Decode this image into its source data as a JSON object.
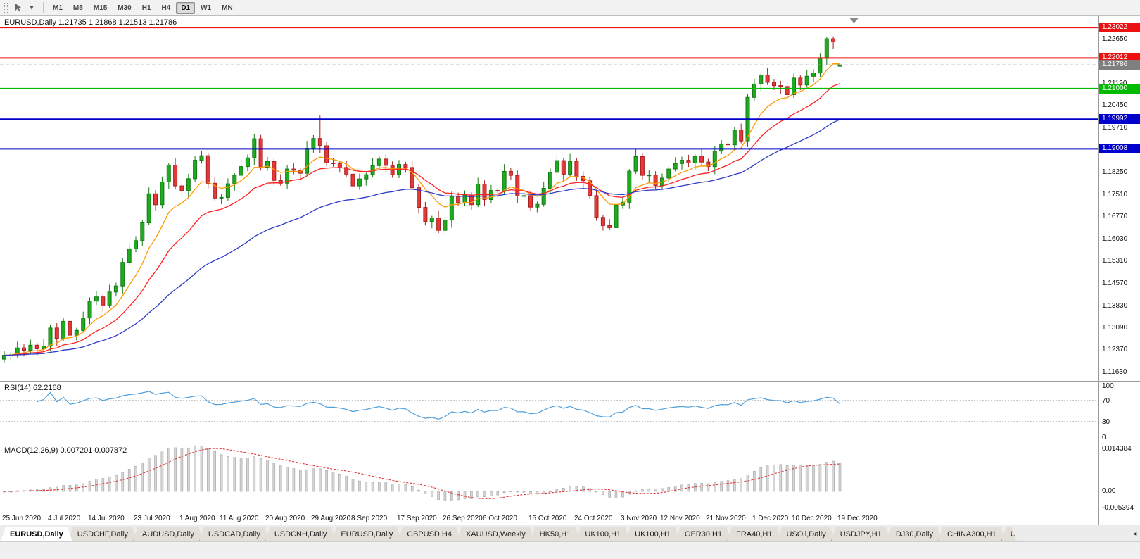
{
  "toolbar": {
    "timeframes": [
      "M1",
      "M5",
      "M15",
      "M30",
      "H1",
      "H4",
      "D1",
      "W1",
      "MN"
    ],
    "active_timeframe": "D1"
  },
  "chart_data": {
    "type": "candlestick",
    "symbol": "EURUSD",
    "period": "Daily",
    "title": "EURUSD,Daily 1.21735 1.21868 1.21513 1.21786",
    "ohlc_display": {
      "open": "1.21735",
      "high": "1.21868",
      "low": "1.21513",
      "close": "1.21786"
    },
    "price_scale": {
      "max": 1.2335,
      "min": 1.114
    },
    "price_axis_ticks": [
      "1.22650",
      "1.21190",
      "1.20450",
      "1.19710",
      "1.18250",
      "1.17510",
      "1.16770",
      "1.16030",
      "1.15310",
      "1.14570",
      "1.13830",
      "1.13090",
      "1.12370",
      "1.11630"
    ],
    "colors": {
      "up_fill": "#1fab1f",
      "up_border": "#157a15",
      "down_fill": "#e33939",
      "down_border": "#aa1f1f",
      "background": "#ffffff"
    },
    "h_lines": [
      {
        "price": 1.23022,
        "label": "1.23022",
        "color": "#ee1111"
      },
      {
        "price": 1.22012,
        "label": "1.22012",
        "color": "#ee1111"
      },
      {
        "price": 1.21,
        "label": "1.21000",
        "color": "#00bb00"
      },
      {
        "price": 1.19992,
        "label": "1.19992",
        "color": "#0000cc"
      },
      {
        "price": 1.19008,
        "label": "1.19008",
        "color": "#0000cc"
      }
    ],
    "current_price": {
      "value": 1.21786,
      "label": "1.21786",
      "color": "#7f7f7f"
    },
    "moving_averages": [
      {
        "name": "ma-fast-line",
        "period": 8,
        "color": "#ff9900"
      },
      {
        "name": "ma-mid-line",
        "period": 17,
        "color": "#ff2020"
      },
      {
        "name": "ma-slow-line",
        "period": 40,
        "color": "#2e3bc7"
      }
    ],
    "x_axis": {
      "indices": [
        0,
        7,
        13,
        20,
        27,
        33,
        40,
        47,
        53,
        60,
        67,
        73,
        80,
        87,
        94,
        100,
        107,
        114,
        120,
        127
      ],
      "labels": [
        "25 Jun 2020",
        "4 Jul 2020",
        "14 Jul 2020",
        "23 Jul 2020",
        "1 Aug 2020",
        "11 Aug 2020",
        "20 Aug 2020",
        "29 Aug 2020",
        "8 Sep 2020",
        "17 Sep 2020",
        "26 Sep 2020",
        "6 Oct 2020",
        "15 Oct 2020",
        "24 Oct 2020",
        "3 Nov 2020",
        "12 Nov 2020",
        "21 Nov 2020",
        "1 Dec 2020",
        "10 Dec 2020",
        "19 Dec 2020"
      ]
    },
    "indicators": {
      "rsi": {
        "label": "RSI(14) 62.2168",
        "period": 14,
        "value": 62.2168,
        "levels": [
          70,
          30
        ],
        "scale_labels": [
          "100",
          "70",
          "30",
          "0"
        ],
        "color": "#4f9fdc"
      },
      "macd": {
        "label": "MACD(12,26,9) 0.007201 0.007872",
        "fast": 12,
        "slow": 26,
        "signal": 9,
        "main_value": 0.007201,
        "signal_value": 0.007872,
        "scale_max": 0.014384,
        "scale_min": -0.005394,
        "scale_labels": {
          "top": "0.014384",
          "zero": "0.00",
          "bottom": "-0.005394"
        },
        "histogram_color": "#d6d6d6",
        "signal_color": "#e03232"
      }
    },
    "candles": {
      "open": [
        1.1205,
        1.1218,
        1.1219,
        1.1242,
        1.1234,
        1.1251,
        1.1239,
        1.1248,
        1.1308,
        1.1274,
        1.133,
        1.1284,
        1.13,
        1.1341,
        1.1397,
        1.1411,
        1.1384,
        1.1427,
        1.1447,
        1.1525,
        1.157,
        1.1597,
        1.1656,
        1.1752,
        1.1716,
        1.1791,
        1.1847,
        1.1778,
        1.1762,
        1.1802,
        1.1863,
        1.1878,
        1.1787,
        1.1738,
        1.174,
        1.1785,
        1.1813,
        1.1842,
        1.1871,
        1.1934,
        1.1839,
        1.1859,
        1.1796,
        1.1787,
        1.1834,
        1.183,
        1.182,
        1.1903,
        1.1935,
        1.1911,
        1.1854,
        1.1853,
        1.1839,
        1.1817,
        1.1778,
        1.1801,
        1.1815,
        1.1845,
        1.1867,
        1.1846,
        1.1815,
        1.1849,
        1.1839,
        1.1772,
        1.1707,
        1.166,
        1.1672,
        1.1631,
        1.1665,
        1.1743,
        1.1722,
        1.1748,
        1.1716,
        1.1784,
        1.1733,
        1.1763,
        1.1761,
        1.1826,
        1.1813,
        1.1745,
        1.1746,
        1.1708,
        1.1717,
        1.177,
        1.1823,
        1.1862,
        1.1817,
        1.186,
        1.181,
        1.1795,
        1.1746,
        1.1674,
        1.1647,
        1.164,
        1.1715,
        1.1724,
        1.1827,
        1.1875,
        1.1813,
        1.1814,
        1.1779,
        1.1804,
        1.1834,
        1.1852,
        1.1863,
        1.1854,
        1.1876,
        1.1857,
        1.1842,
        1.1893,
        1.1917,
        1.1914,
        1.1963,
        1.1927,
        1.2071,
        1.2115,
        1.2145,
        1.2121,
        1.211,
        1.2107,
        1.208,
        1.2135,
        1.2112,
        1.2141,
        1.2152,
        1.22,
        1.2265,
        1.2174
      ],
      "high": [
        1.1233,
        1.1228,
        1.1263,
        1.1254,
        1.1269,
        1.1258,
        1.1272,
        1.1319,
        1.1324,
        1.1343,
        1.1345,
        1.1309,
        1.1362,
        1.1409,
        1.1429,
        1.1418,
        1.1451,
        1.1458,
        1.1541,
        1.1583,
        1.1612,
        1.1665,
        1.1773,
        1.1764,
        1.1809,
        1.1854,
        1.1871,
        1.1789,
        1.1818,
        1.1876,
        1.1893,
        1.1887,
        1.1808,
        1.1752,
        1.1803,
        1.182,
        1.1866,
        1.1882,
        1.195,
        1.1947,
        1.1874,
        1.1868,
        1.1817,
        1.1846,
        1.1852,
        1.1837,
        1.1927,
        1.1946,
        1.2011,
        1.1924,
        1.1869,
        1.1862,
        1.186,
        1.1829,
        1.1819,
        1.1822,
        1.1869,
        1.1878,
        1.1883,
        1.1859,
        1.1864,
        1.1858,
        1.186,
        1.1784,
        1.1725,
        1.1679,
        1.1696,
        1.1676,
        1.1759,
        1.1756,
        1.1763,
        1.1757,
        1.1805,
        1.1796,
        1.1781,
        1.177,
        1.185,
        1.1837,
        1.1829,
        1.1759,
        1.1761,
        1.1726,
        1.1791,
        1.1835,
        1.188,
        1.1869,
        1.1884,
        1.1871,
        1.1826,
        1.1808,
        1.1761,
        1.1683,
        1.1668,
        1.1727,
        1.1742,
        1.1834,
        1.1899,
        1.1886,
        1.183,
        1.1827,
        1.1819,
        1.1843,
        1.1873,
        1.1875,
        1.1881,
        1.1883,
        1.19,
        1.1868,
        1.1909,
        1.193,
        1.1932,
        1.1972,
        1.1984,
        1.2083,
        1.2133,
        1.2152,
        1.2169,
        1.2132,
        1.2126,
        1.212,
        1.215,
        1.2144,
        1.2162,
        1.2164,
        1.2218,
        1.2272,
        1.2273,
        1.2187
      ],
      "low": [
        1.1194,
        1.1201,
        1.1211,
        1.1214,
        1.1221,
        1.1217,
        1.123,
        1.1233,
        1.1249,
        1.1264,
        1.1273,
        1.1267,
        1.1292,
        1.1321,
        1.1384,
        1.1362,
        1.1375,
        1.1412,
        1.1422,
        1.1515,
        1.1559,
        1.158,
        1.1648,
        1.1696,
        1.1703,
        1.1769,
        1.1769,
        1.1747,
        1.1737,
        1.1792,
        1.1852,
        1.177,
        1.173,
        1.1718,
        1.1727,
        1.1763,
        1.1804,
        1.1827,
        1.1846,
        1.1829,
        1.1828,
        1.1779,
        1.1779,
        1.1767,
        1.1817,
        1.1798,
        1.1811,
        1.1888,
        1.1886,
        1.1844,
        1.1842,
        1.1822,
        1.1809,
        1.1758,
        1.1765,
        1.1779,
        1.1806,
        1.183,
        1.1821,
        1.1805,
        1.1804,
        1.1822,
        1.1764,
        1.1687,
        1.1647,
        1.1638,
        1.1622,
        1.1616,
        1.164,
        1.1712,
        1.1711,
        1.1699,
        1.1708,
        1.1713,
        1.172,
        1.1739,
        1.1752,
        1.1798,
        1.172,
        1.1735,
        1.1697,
        1.1691,
        1.1709,
        1.175,
        1.181,
        1.1795,
        1.1808,
        1.1795,
        1.177,
        1.1736,
        1.1663,
        1.163,
        1.1632,
        1.162,
        1.1702,
        1.1702,
        1.1818,
        1.1798,
        1.1788,
        1.1769,
        1.1768,
        1.1787,
        1.1826,
        1.1832,
        1.1841,
        1.1832,
        1.1848,
        1.1827,
        1.1817,
        1.1883,
        1.1903,
        1.1897,
        1.1919,
        1.1907,
        1.2058,
        1.2093,
        1.2112,
        1.2095,
        1.2082,
        1.207,
        1.2069,
        1.2095,
        1.2104,
        1.2121,
        1.2139,
        1.2178,
        1.2232,
        1.2151
      ],
      "close": [
        1.1218,
        1.1219,
        1.1242,
        1.1234,
        1.1251,
        1.1239,
        1.1248,
        1.1308,
        1.1274,
        1.133,
        1.1284,
        1.13,
        1.1341,
        1.1397,
        1.1411,
        1.1384,
        1.1427,
        1.1447,
        1.1525,
        1.157,
        1.1597,
        1.1656,
        1.1752,
        1.1716,
        1.1791,
        1.1847,
        1.1778,
        1.1762,
        1.1802,
        1.1863,
        1.1878,
        1.1787,
        1.1738,
        1.174,
        1.1785,
        1.1813,
        1.1842,
        1.1871,
        1.1934,
        1.1839,
        1.1859,
        1.1796,
        1.1787,
        1.1834,
        1.183,
        1.182,
        1.1903,
        1.1935,
        1.1911,
        1.1854,
        1.1853,
        1.1839,
        1.1817,
        1.1778,
        1.1801,
        1.1815,
        1.1845,
        1.1867,
        1.1846,
        1.1815,
        1.1849,
        1.1839,
        1.1772,
        1.1707,
        1.166,
        1.1672,
        1.1631,
        1.1665,
        1.1743,
        1.1722,
        1.1748,
        1.1716,
        1.1784,
        1.1733,
        1.1763,
        1.1761,
        1.1826,
        1.1813,
        1.1745,
        1.1746,
        1.1708,
        1.1717,
        1.177,
        1.1823,
        1.1862,
        1.1817,
        1.186,
        1.181,
        1.1795,
        1.1746,
        1.1674,
        1.1647,
        1.164,
        1.1715,
        1.1724,
        1.1827,
        1.1875,
        1.1813,
        1.1814,
        1.1779,
        1.1804,
        1.1834,
        1.1852,
        1.1863,
        1.1854,
        1.1876,
        1.1857,
        1.1842,
        1.1893,
        1.1917,
        1.1914,
        1.1963,
        1.1927,
        1.2071,
        1.2115,
        1.2145,
        1.2121,
        1.211,
        1.2107,
        1.208,
        1.2135,
        1.2112,
        1.2141,
        1.2152,
        1.22,
        1.2265,
        1.2255,
        1.2179
      ]
    }
  },
  "tabs": {
    "items": [
      {
        "label": "EURUSD,Daily",
        "active": true
      },
      {
        "label": "USDCHF,Daily"
      },
      {
        "label": "AUDUSD,Daily"
      },
      {
        "label": "USDCAD,Daily"
      },
      {
        "label": "USDCNH,Daily"
      },
      {
        "label": "EURUSD,Daily"
      },
      {
        "label": "GBPUSD,H4"
      },
      {
        "label": "XAUUSD,Weekly"
      },
      {
        "label": "HK50,H1"
      },
      {
        "label": "UK100,H1"
      },
      {
        "label": "UK100,H1"
      },
      {
        "label": "GER30,H1"
      },
      {
        "label": "FRA40,H1"
      },
      {
        "label": "USOil,Daily"
      },
      {
        "label": "USDJPY,H1"
      },
      {
        "label": "DJ30,Daily"
      },
      {
        "label": "CHINA300,H1"
      },
      {
        "label": "U",
        "truncated": true
      }
    ],
    "scroll_left_glyph": "◄"
  }
}
